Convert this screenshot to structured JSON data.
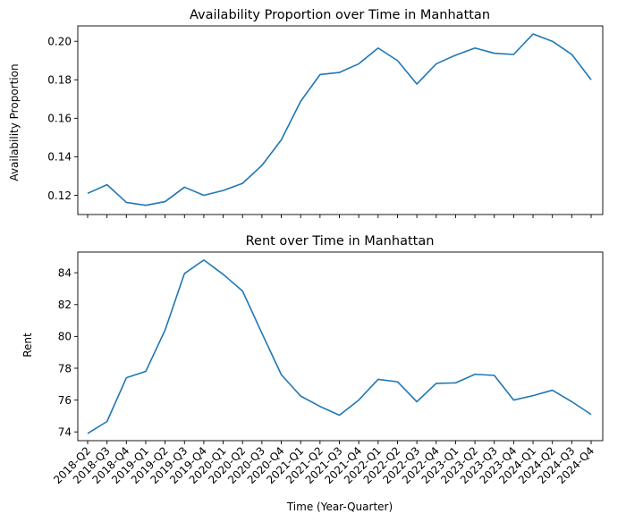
{
  "chart_data": [
    {
      "type": "line",
      "title": "Availability Proportion over Time in Manhattan",
      "xlabel": "",
      "ylabel": "Availability Proportion",
      "ylim": [
        0.11,
        0.208
      ],
      "yticks": [
        "0.12",
        "0.14",
        "0.16",
        "0.18",
        "0.20"
      ],
      "ytick_values": [
        0.12,
        0.14,
        0.16,
        0.18,
        0.2
      ],
      "grid": false,
      "color": "#1f77b4",
      "values": [
        0.121,
        0.1255,
        0.1163,
        0.1148,
        0.1167,
        0.1242,
        0.12,
        0.1225,
        0.1262,
        0.1355,
        0.1488,
        0.1688,
        0.1827,
        0.1838,
        0.1883,
        0.1965,
        0.19,
        0.1778,
        0.1883,
        0.1928,
        0.1965,
        0.1938,
        0.1932,
        0.2038,
        0.2,
        0.1932,
        0.18
      ]
    },
    {
      "type": "line",
      "title": "Rent over Time in Manhattan",
      "xlabel": "Time (Year-Quarter)",
      "ylabel": "Rent",
      "ylim": [
        73.45,
        85.3
      ],
      "yticks": [
        "74",
        "76",
        "78",
        "80",
        "82",
        "84"
      ],
      "ytick_values": [
        74,
        76,
        78,
        80,
        82,
        84
      ],
      "grid": false,
      "color": "#1f77b4",
      "values": [
        73.9,
        74.65,
        77.4,
        77.8,
        80.4,
        83.95,
        84.8,
        83.9,
        82.85,
        80.2,
        77.6,
        76.25,
        75.6,
        75.05,
        76.0,
        77.3,
        77.15,
        75.9,
        77.05,
        77.08,
        77.62,
        77.55,
        76.0,
        76.28,
        76.62,
        75.9,
        75.1
      ]
    }
  ],
  "categories": [
    "2018-Q2",
    "2018-Q3",
    "2018-Q4",
    "2019-Q1",
    "2019-Q2",
    "2019-Q3",
    "2019-Q4",
    "2020-Q1",
    "2020-Q2",
    "2020-Q3",
    "2020-Q4",
    "2021-Q1",
    "2021-Q2",
    "2021-Q3",
    "2021-Q4",
    "2022-Q1",
    "2022-Q2",
    "2022-Q3",
    "2022-Q4",
    "2023-Q1",
    "2023-Q2",
    "2023-Q3",
    "2023-Q4",
    "2024-Q1",
    "2024-Q2",
    "2024-Q3",
    "2024-Q4"
  ]
}
